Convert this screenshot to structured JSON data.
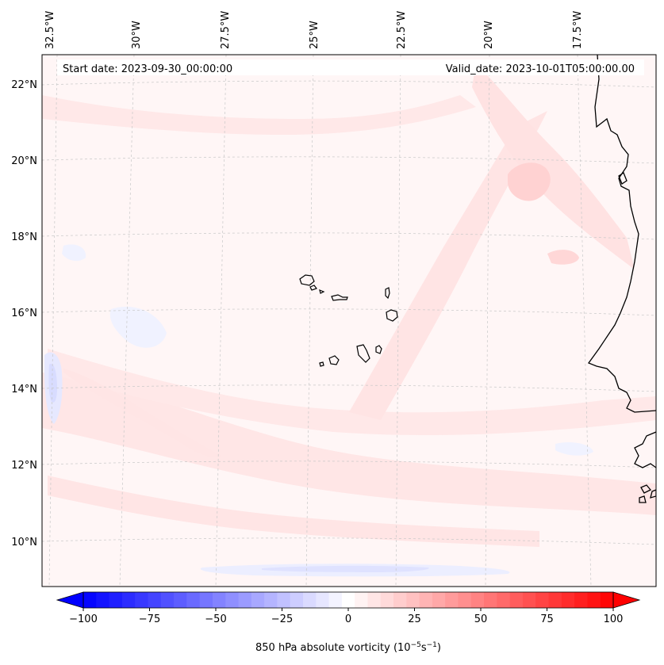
{
  "start_date": "Start date: 2023-09-30_00:00:00",
  "valid_date": "Valid_date: 2023-10-01T05:00:00.00",
  "lon_labels": [
    "32.5°W",
    "30°W",
    "27.5°W",
    "25°W",
    "22.5°W",
    "20°W",
    "17.5°W"
  ],
  "lat_labels": [
    "22°N",
    "20°N",
    "18°N",
    "16°N",
    "14°N",
    "12°N",
    "10°N"
  ],
  "colorbar": {
    "label": "850 hPa absolute vorticity (10",
    "label_sup1": "−5",
    "label_mid": "s",
    "label_sup2": "−1",
    "label_end": ")",
    "min": -100,
    "max": 100,
    "levels": 41,
    "ticks": [
      "−100",
      "−75",
      "−50",
      "−25",
      "0",
      "25",
      "50",
      "75",
      "100"
    ],
    "color_low": "#0000ff",
    "color_mid": "#ffffff",
    "color_high": "#ff0000"
  },
  "colors": {
    "coastline": "#000000",
    "gridline": "#c8c8c8",
    "field_base": "#fff6f6",
    "field_pos_light": "#ffe4e4",
    "field_pos_medium": "#ffd3d3",
    "field_neg_light": "#eef0ff",
    "field_neg_medium": "#dcdcff"
  }
}
